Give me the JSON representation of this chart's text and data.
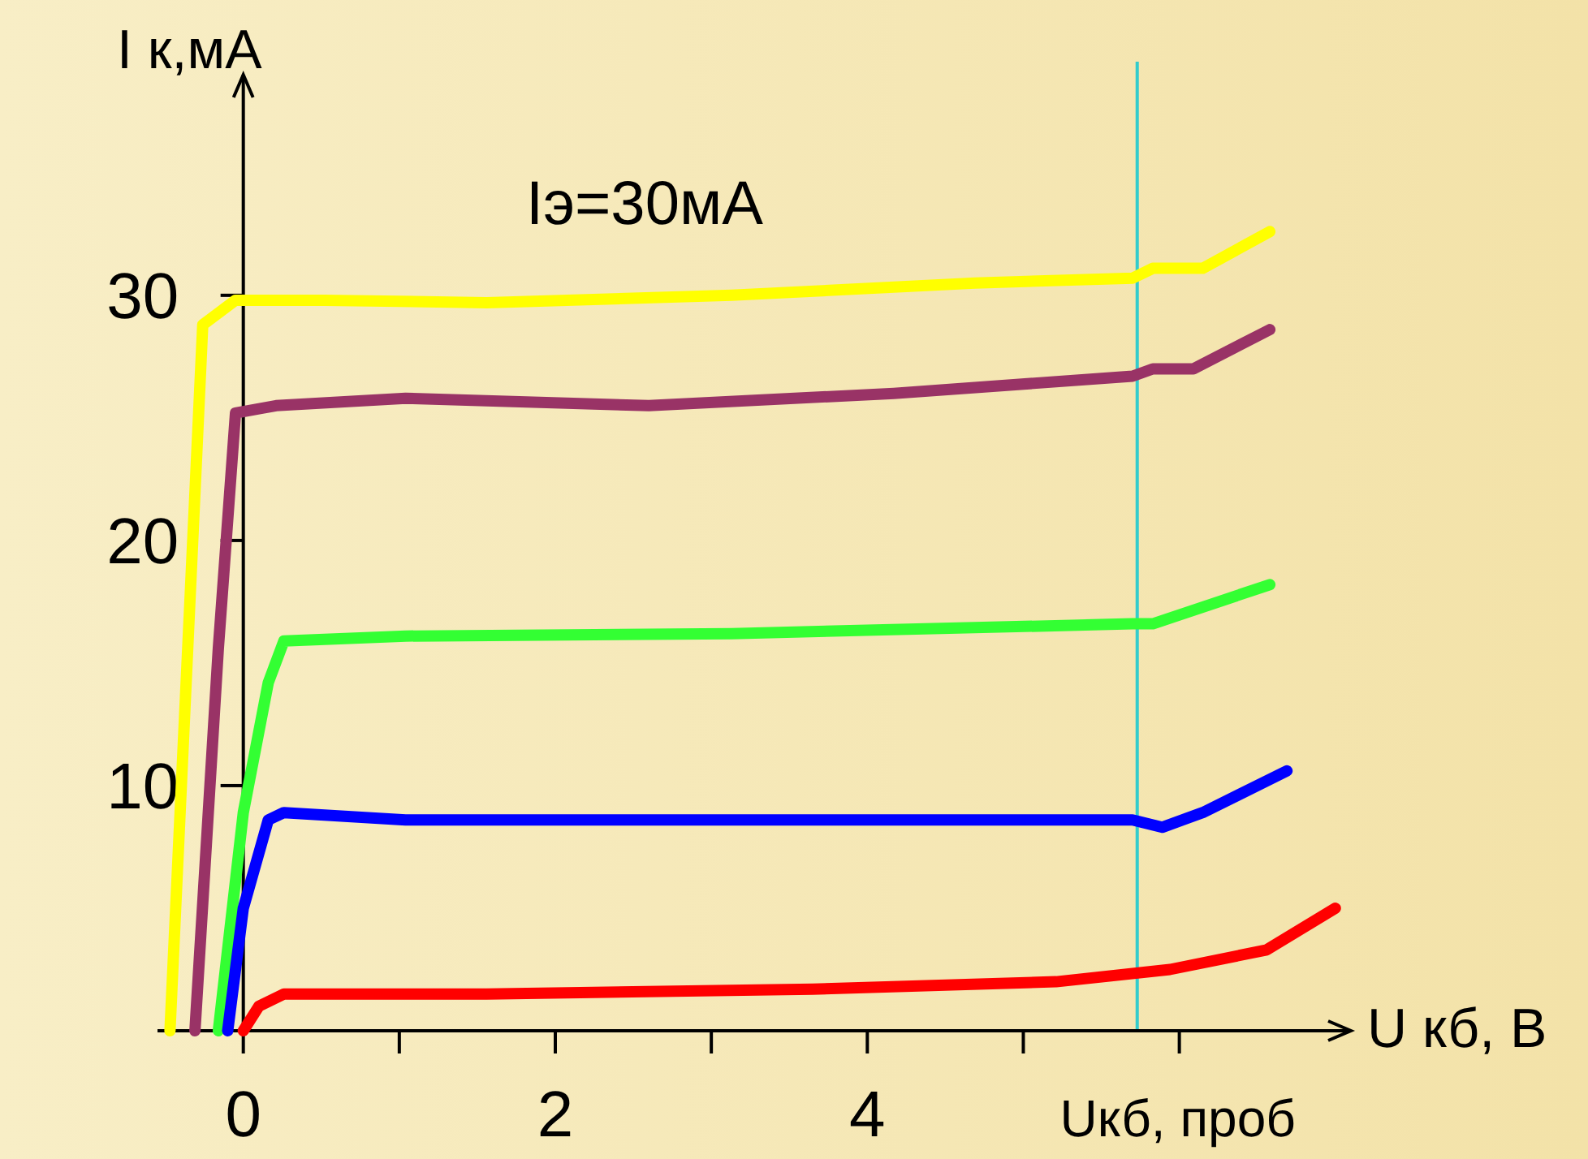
{
  "chart_data": {
    "type": "line",
    "xlabel": "U кб, В",
    "ylabel": "I к,мА",
    "xlim": [
      -0.55,
      7.1
    ],
    "ylim": [
      0,
      39
    ],
    "xticks": [
      0,
      {
        "value": 1,
        "label": null
      },
      2,
      {
        "value": 3,
        "label": null
      },
      4,
      {
        "value": 5,
        "label": null
      },
      {
        "value": 6,
        "label": null
      }
    ],
    "yticks": [
      10,
      20,
      30
    ],
    "grid": false,
    "legend": false,
    "marker": "none",
    "line_style": "solid",
    "annotations": [
      "Iэ=30мА"
    ],
    "ref_lines": [
      {
        "axis": "x",
        "value": 5.73,
        "label": "Uкб, проб",
        "color": "#33cccc"
      }
    ],
    "series": [
      {
        "color": "#ffff00",
        "x": [
          -0.47,
          -0.26,
          -0.05,
          0.52,
          1.56,
          3.13,
          4.69,
          5.7,
          5.83,
          6.15,
          6.58
        ],
        "values": [
          0,
          28.8,
          29.8,
          29.8,
          29.7,
          30,
          30.5,
          30.7,
          31.1,
          31.1,
          32.6
        ]
      },
      {
        "color": "#993366",
        "x": [
          -0.31,
          -0.16,
          -0.05,
          0.21,
          1.04,
          2.6,
          4.17,
          5.7,
          5.83,
          6.09,
          6.58
        ],
        "values": [
          0,
          15.6,
          25.2,
          25.5,
          25.8,
          25.5,
          26,
          26.7,
          27,
          27,
          28.6
        ]
      },
      {
        "color": "#33ff33",
        "x": [
          -0.16,
          0,
          0.16,
          0.26,
          1.04,
          3.13,
          5.7,
          5.83,
          6.58
        ],
        "values": [
          0,
          8.9,
          14.2,
          15.9,
          16.1,
          16.2,
          16.6,
          16.6,
          18.2
        ]
      },
      {
        "color": "#0000ff",
        "x": [
          -0.1,
          0,
          0.16,
          0.26,
          1.04,
          3.13,
          5.7,
          5.89,
          6.15,
          6.69
        ],
        "values": [
          0,
          5,
          8.6,
          8.9,
          8.6,
          8.6,
          8.6,
          8.3,
          8.9,
          10.6
        ]
      },
      {
        "color": "#ff0000",
        "x": [
          0,
          0.1,
          0.26,
          1.56,
          3.65,
          5.21,
          5.94,
          6.56,
          7
        ],
        "values": [
          0,
          1,
          1.5,
          1.5,
          1.7,
          2,
          2.5,
          3.3,
          5
        ]
      }
    ]
  }
}
